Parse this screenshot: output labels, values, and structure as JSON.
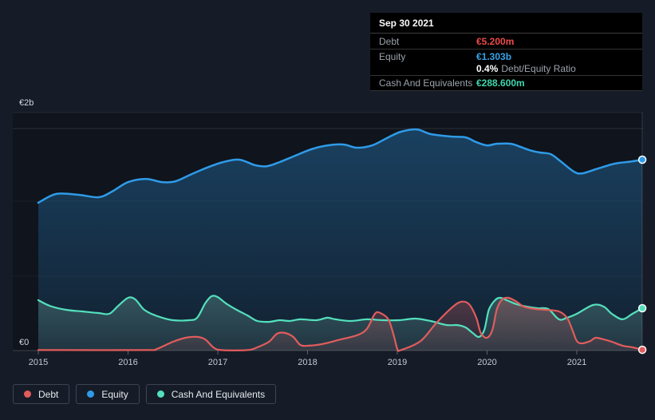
{
  "axis": {
    "y_top": "€2b",
    "y_bottom": "€0"
  },
  "tooltip": {
    "date": "Sep 30 2021",
    "rows": [
      {
        "label": "Debt",
        "value": "€5.200m",
        "color": "#ef4949"
      },
      {
        "label": "Equity",
        "value": "€1.303b",
        "color": "#35a3ea"
      },
      {
        "label": "Cash And Equivalents",
        "value": "€288.600m",
        "color": "#3fd6ae"
      }
    ],
    "ratio_value": "0.4%",
    "ratio_label": "Debt/Equity Ratio"
  },
  "legend": [
    {
      "label": "Debt",
      "color": "#e25c5c"
    },
    {
      "label": "Equity",
      "color": "#2f9be8"
    },
    {
      "label": "Cash And Equivalents",
      "color": "#53e0bd"
    }
  ],
  "chart_data": {
    "type": "area",
    "x_tick_labels": [
      "2015",
      "2016",
      "2017",
      "2018",
      "2019",
      "2020",
      "2021"
    ],
    "x_range_years": [
      2015,
      2021.73
    ],
    "ylim": [
      0,
      2
    ],
    "y_unit": "EUR billions",
    "grid": true,
    "legend_position": "bottom",
    "series": [
      {
        "key": "equity",
        "name": "Equity",
        "color": "#2f9be8",
        "points": [
          [
            2015.0,
            1.009
          ],
          [
            2015.2,
            1.069
          ],
          [
            2015.45,
            1.063
          ],
          [
            2015.67,
            1.047
          ],
          [
            2015.82,
            1.085
          ],
          [
            2016.0,
            1.15
          ],
          [
            2016.2,
            1.172
          ],
          [
            2016.38,
            1.15
          ],
          [
            2016.53,
            1.156
          ],
          [
            2016.71,
            1.205
          ],
          [
            2016.88,
            1.249
          ],
          [
            2017.06,
            1.287
          ],
          [
            2017.24,
            1.303
          ],
          [
            2017.42,
            1.265
          ],
          [
            2017.55,
            1.259
          ],
          [
            2017.69,
            1.287
          ],
          [
            2017.86,
            1.33
          ],
          [
            2018.04,
            1.374
          ],
          [
            2018.22,
            1.401
          ],
          [
            2018.4,
            1.407
          ],
          [
            2018.55,
            1.385
          ],
          [
            2018.72,
            1.401
          ],
          [
            2018.9,
            1.456
          ],
          [
            2019.04,
            1.494
          ],
          [
            2019.22,
            1.51
          ],
          [
            2019.37,
            1.478
          ],
          [
            2019.61,
            1.461
          ],
          [
            2019.76,
            1.456
          ],
          [
            2019.88,
            1.423
          ],
          [
            2020.0,
            1.401
          ],
          [
            2020.11,
            1.412
          ],
          [
            2020.26,
            1.412
          ],
          [
            2020.35,
            1.396
          ],
          [
            2020.47,
            1.369
          ],
          [
            2020.59,
            1.352
          ],
          [
            2020.71,
            1.341
          ],
          [
            2020.82,
            1.292
          ],
          [
            2020.97,
            1.221
          ],
          [
            2021.06,
            1.21
          ],
          [
            2021.21,
            1.238
          ],
          [
            2021.42,
            1.276
          ],
          [
            2021.6,
            1.29
          ],
          [
            2021.73,
            1.303
          ]
        ]
      },
      {
        "key": "cash",
        "name": "Cash And Equivalents",
        "color": "#53e0bd",
        "points": [
          [
            2015.0,
            0.344
          ],
          [
            2015.13,
            0.305
          ],
          [
            2015.31,
            0.278
          ],
          [
            2015.49,
            0.267
          ],
          [
            2015.67,
            0.256
          ],
          [
            2015.79,
            0.251
          ],
          [
            2015.89,
            0.305
          ],
          [
            2016.0,
            0.36
          ],
          [
            2016.08,
            0.349
          ],
          [
            2016.17,
            0.284
          ],
          [
            2016.26,
            0.251
          ],
          [
            2016.38,
            0.224
          ],
          [
            2016.5,
            0.207
          ],
          [
            2016.68,
            0.207
          ],
          [
            2016.77,
            0.224
          ],
          [
            2016.86,
            0.322
          ],
          [
            2016.93,
            0.371
          ],
          [
            2017.0,
            0.365
          ],
          [
            2017.09,
            0.322
          ],
          [
            2017.21,
            0.278
          ],
          [
            2017.33,
            0.24
          ],
          [
            2017.44,
            0.202
          ],
          [
            2017.57,
            0.196
          ],
          [
            2017.69,
            0.207
          ],
          [
            2017.8,
            0.202
          ],
          [
            2017.92,
            0.213
          ],
          [
            2018.1,
            0.207
          ],
          [
            2018.22,
            0.224
          ],
          [
            2018.31,
            0.213
          ],
          [
            2018.48,
            0.202
          ],
          [
            2018.66,
            0.213
          ],
          [
            2018.84,
            0.207
          ],
          [
            2019.02,
            0.207
          ],
          [
            2019.2,
            0.218
          ],
          [
            2019.37,
            0.202
          ],
          [
            2019.55,
            0.174
          ],
          [
            2019.67,
            0.174
          ],
          [
            2019.76,
            0.158
          ],
          [
            2019.84,
            0.12
          ],
          [
            2019.91,
            0.093
          ],
          [
            2019.97,
            0.142
          ],
          [
            2020.02,
            0.278
          ],
          [
            2020.09,
            0.344
          ],
          [
            2020.15,
            0.36
          ],
          [
            2020.24,
            0.338
          ],
          [
            2020.33,
            0.316
          ],
          [
            2020.44,
            0.3
          ],
          [
            2020.56,
            0.289
          ],
          [
            2020.68,
            0.284
          ],
          [
            2020.8,
            0.213
          ],
          [
            2020.89,
            0.224
          ],
          [
            2021.0,
            0.251
          ],
          [
            2021.18,
            0.311
          ],
          [
            2021.3,
            0.3
          ],
          [
            2021.39,
            0.251
          ],
          [
            2021.51,
            0.213
          ],
          [
            2021.62,
            0.251
          ],
          [
            2021.73,
            0.289
          ]
        ]
      },
      {
        "key": "debt",
        "name": "Debt",
        "color": "#e25c5c",
        "points": [
          [
            2015.0,
            0.003
          ],
          [
            2015.24,
            0.003
          ],
          [
            2016.2,
            0.003
          ],
          [
            2016.32,
            0.011
          ],
          [
            2016.5,
            0.06
          ],
          [
            2016.64,
            0.087
          ],
          [
            2016.77,
            0.093
          ],
          [
            2016.86,
            0.076
          ],
          [
            2016.95,
            0.022
          ],
          [
            2017.04,
            0.003
          ],
          [
            2017.33,
            0.003
          ],
          [
            2017.44,
            0.022
          ],
          [
            2017.57,
            0.06
          ],
          [
            2017.66,
            0.115
          ],
          [
            2017.75,
            0.12
          ],
          [
            2017.84,
            0.093
          ],
          [
            2017.92,
            0.038
          ],
          [
            2018.01,
            0.033
          ],
          [
            2018.16,
            0.044
          ],
          [
            2018.37,
            0.076
          ],
          [
            2018.55,
            0.104
          ],
          [
            2018.66,
            0.147
          ],
          [
            2018.75,
            0.251
          ],
          [
            2018.81,
            0.256
          ],
          [
            2018.9,
            0.213
          ],
          [
            2018.96,
            0.104
          ],
          [
            2019.0,
            0.011
          ],
          [
            2019.04,
            0.003
          ],
          [
            2019.26,
            0.065
          ],
          [
            2019.43,
            0.185
          ],
          [
            2019.61,
            0.294
          ],
          [
            2019.71,
            0.333
          ],
          [
            2019.8,
            0.316
          ],
          [
            2019.88,
            0.224
          ],
          [
            2019.93,
            0.12
          ],
          [
            2020.0,
            0.087
          ],
          [
            2020.06,
            0.142
          ],
          [
            2020.11,
            0.284
          ],
          [
            2020.17,
            0.349
          ],
          [
            2020.24,
            0.36
          ],
          [
            2020.33,
            0.333
          ],
          [
            2020.41,
            0.3
          ],
          [
            2020.53,
            0.284
          ],
          [
            2020.65,
            0.278
          ],
          [
            2020.8,
            0.267
          ],
          [
            2020.89,
            0.224
          ],
          [
            2020.95,
            0.142
          ],
          [
            2021.0,
            0.065
          ],
          [
            2021.06,
            0.049
          ],
          [
            2021.15,
            0.065
          ],
          [
            2021.21,
            0.087
          ],
          [
            2021.3,
            0.076
          ],
          [
            2021.39,
            0.06
          ],
          [
            2021.51,
            0.033
          ],
          [
            2021.62,
            0.022
          ],
          [
            2021.73,
            0.005
          ]
        ]
      }
    ]
  }
}
